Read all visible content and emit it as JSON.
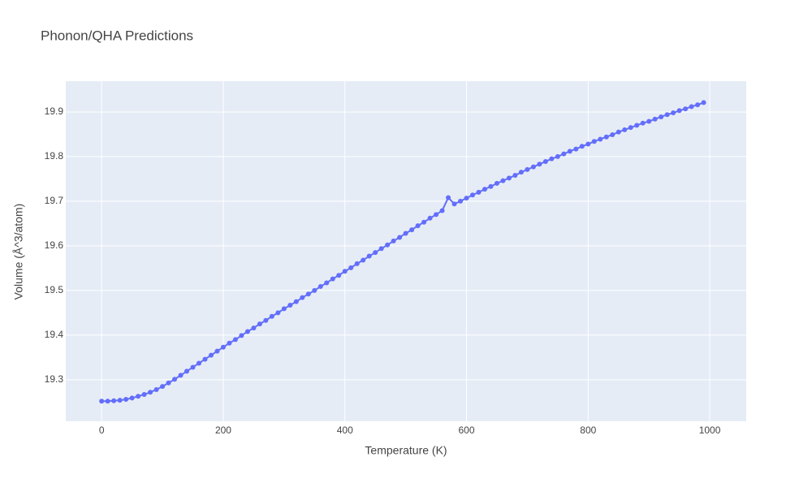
{
  "chart_data": {
    "type": "line",
    "title": "Phonon/QHA Predictions",
    "x_label": "Temperature (K)",
    "y_label": "Volume (Å^3/atom)",
    "x": [
      0,
      10,
      20,
      30,
      40,
      50,
      60,
      70,
      80,
      90,
      100,
      110,
      120,
      130,
      140,
      150,
      160,
      170,
      180,
      190,
      200,
      210,
      220,
      230,
      240,
      250,
      260,
      270,
      280,
      290,
      300,
      310,
      320,
      330,
      340,
      350,
      360,
      370,
      380,
      390,
      400,
      410,
      420,
      430,
      440,
      450,
      460,
      470,
      480,
      490,
      500,
      510,
      520,
      530,
      540,
      550,
      560,
      570,
      580,
      590,
      600,
      610,
      620,
      630,
      640,
      650,
      660,
      670,
      680,
      690,
      700,
      710,
      720,
      730,
      740,
      750,
      760,
      770,
      780,
      790,
      800,
      810,
      820,
      830,
      840,
      850,
      860,
      870,
      880,
      890,
      900,
      910,
      920,
      930,
      940,
      950,
      960,
      970,
      980,
      990
    ],
    "series": [
      {
        "color": "#636efa",
        "values": [
          19.252,
          19.252,
          19.253,
          19.254,
          19.256,
          19.259,
          19.263,
          19.267,
          19.272,
          19.278,
          19.285,
          19.293,
          19.301,
          19.31,
          19.319,
          19.328,
          19.337,
          19.346,
          19.355,
          19.364,
          19.373,
          19.382,
          19.39,
          19.399,
          19.408,
          19.416,
          19.425,
          19.433,
          19.442,
          19.45,
          19.459,
          19.467,
          19.475,
          19.484,
          19.492,
          19.5,
          19.509,
          19.517,
          19.526,
          19.534,
          19.543,
          19.551,
          19.56,
          19.568,
          19.577,
          19.585,
          19.594,
          19.602,
          19.611,
          19.619,
          19.628,
          19.636,
          19.645,
          19.653,
          19.662,
          19.67,
          19.679,
          19.708,
          19.694,
          19.7,
          19.707,
          19.714,
          19.72,
          19.727,
          19.733,
          19.74,
          19.746,
          19.752,
          19.758,
          19.765,
          19.771,
          19.777,
          19.783,
          19.789,
          19.795,
          19.8,
          19.806,
          19.812,
          19.817,
          19.823,
          19.828,
          19.834,
          19.839,
          19.844,
          19.849,
          19.855,
          19.86,
          19.865,
          19.87,
          19.875,
          19.879,
          19.884,
          19.889,
          19.894,
          19.898,
          19.903,
          19.907,
          19.912,
          19.916,
          19.921
        ]
      }
    ],
    "xlim": [
      -59,
      1060
    ],
    "ylim": [
      19.207,
      19.969
    ],
    "xticks": [
      0,
      200,
      400,
      600,
      800,
      1000
    ],
    "yticks": [
      19.3,
      19.4,
      19.5,
      19.6,
      19.7,
      19.8,
      19.9
    ],
    "grid": true
  }
}
